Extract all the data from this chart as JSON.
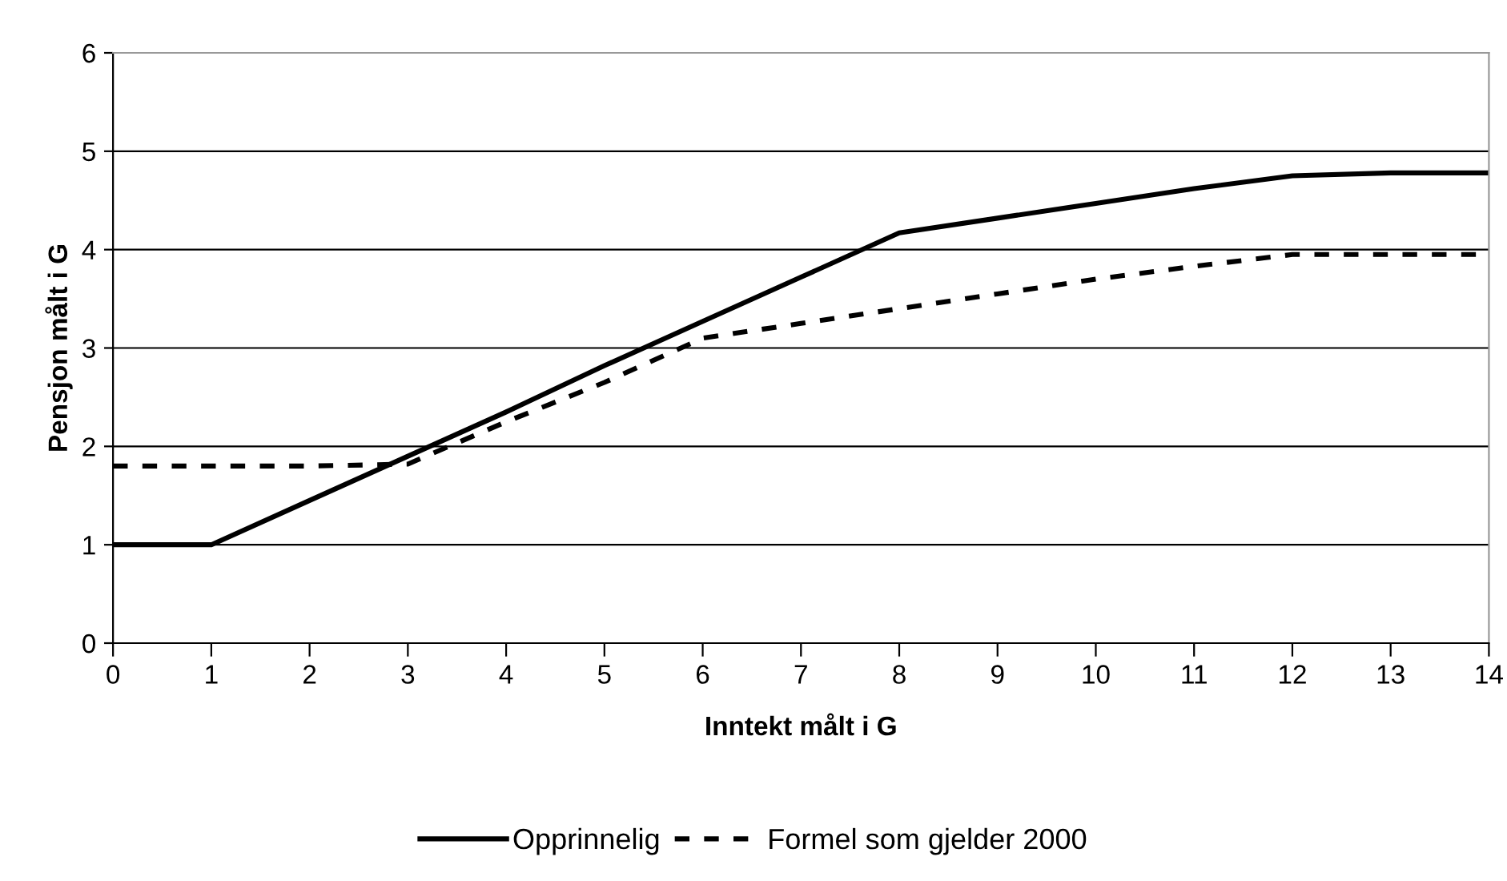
{
  "chart_data": {
    "type": "line",
    "xlabel": "Inntekt målt i G",
    "ylabel": "Pensjon målt i G",
    "x": [
      0,
      1,
      2,
      3,
      4,
      5,
      6,
      7,
      8,
      9,
      10,
      11,
      12,
      13,
      14
    ],
    "series": [
      {
        "name": "Opprinnelig",
        "color": "#000000",
        "line_style": "solid",
        "values": [
          1,
          1,
          1.45,
          1.9,
          2.35,
          2.82,
          3.27,
          3.72,
          4.17,
          4.32,
          4.47,
          4.62,
          4.75,
          4.78,
          4.78
        ]
      },
      {
        "name": "Formel som gjelder 2000",
        "color": "#000000",
        "line_style": "dashed",
        "values": [
          1.8,
          1.8,
          1.8,
          1.82,
          2.25,
          2.65,
          3.1,
          3.25,
          3.4,
          3.55,
          3.7,
          3.83,
          3.95,
          3.95,
          3.95
        ]
      }
    ],
    "xlim": [
      0,
      14
    ],
    "xticks": [
      0,
      1,
      2,
      3,
      4,
      5,
      6,
      7,
      8,
      9,
      10,
      11,
      12,
      13,
      14
    ],
    "ylim": [
      0,
      6
    ],
    "yticks": [
      0,
      1,
      2,
      3,
      4,
      5,
      6
    ],
    "grid": "y",
    "legend": "bottom",
    "marker": "none"
  }
}
